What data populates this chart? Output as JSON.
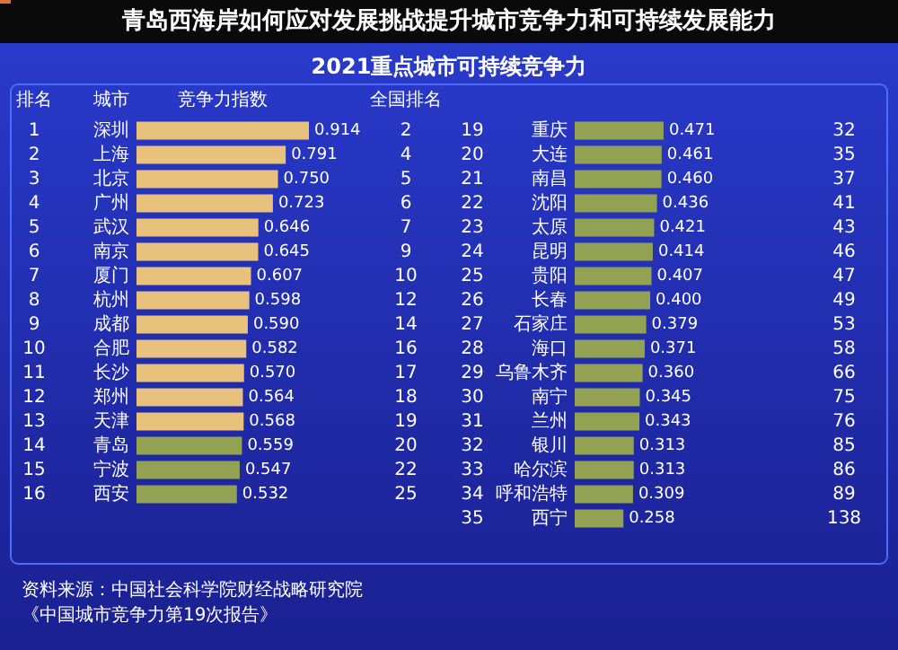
{
  "chart_data": [
    {
      "type": "bar",
      "orientation": "horizontal",
      "title": "2021重点城市可持续竞争力",
      "xlabel": "竞争力指数",
      "ylabel": "城市",
      "categories": [
        "深圳",
        "上海",
        "北京",
        "广州",
        "武汉",
        "南京",
        "厦门",
        "杭州",
        "成都",
        "合肥",
        "长沙",
        "郑州",
        "天津",
        "青岛",
        "宁波",
        "西安",
        null,
        null
      ],
      "values": [
        0.914,
        0.791,
        0.75,
        0.723,
        0.646,
        0.645,
        0.607,
        0.598,
        0.59,
        0.582,
        0.57,
        0.564,
        0.568,
        0.559,
        0.547,
        0.532,
        null,
        null
      ],
      "value_labels": [
        "0.914",
        "0.791",
        "0.750",
        "0.723",
        "0.646",
        "0.645",
        "0.607",
        "0.598",
        "0.590",
        "0.582",
        "0.570",
        "0.564",
        "0.568",
        "0.559",
        "0.547",
        "0.532",
        null,
        null
      ],
      "colors": [
        "#e8c27c",
        "#e8c27c",
        "#e8c27c",
        "#e8c27c",
        "#e8c27c",
        "#e8c27c",
        "#e8c27c",
        "#e8c27c",
        "#e8c27c",
        "#e8c27c",
        "#e8c27c",
        "#e8c27c",
        "#e8c27c",
        "#93a152",
        "#93a152",
        "#93a152",
        null,
        null
      ],
      "annotations": [
        "青岛西海岸如何应对发展挑战提升城市竞争力和可持续发展能力",
        "排名",
        "全国排名",
        "资料来源：中国社会科学院财经战略研究院",
        "《中国城市竞争力第19次报告》",
        "1",
        "2",
        "3",
        "4",
        "5",
        "6",
        "7",
        "8",
        "9",
        "10",
        "11",
        "12",
        "13",
        "14",
        "15",
        "16",
        "2",
        "4",
        "5",
        "6",
        "7",
        "9",
        "10",
        "12",
        "14",
        "16",
        "17",
        "18",
        "19",
        "20",
        "22",
        "25"
      ]
    },
    {
      "type": "bar",
      "orientation": "horizontal",
      "categories": [
        "重庆",
        "大连",
        "南昌",
        "沈阳",
        "太原",
        "昆明",
        "贵阳",
        "长春",
        "石家庄",
        "海口",
        "乌鲁木齐",
        "南宁",
        "兰州",
        "银川",
        "哈尔滨",
        "呼和浩特",
        "西宁"
      ],
      "values": [
        0.471,
        0.461,
        0.46,
        0.436,
        0.421,
        0.414,
        0.407,
        0.4,
        0.379,
        0.371,
        0.36,
        0.345,
        0.343,
        0.313,
        0.313,
        0.309,
        0.258
      ],
      "value_labels": [
        "0.471",
        "0.461",
        "0.460",
        "0.436",
        "0.421",
        "0.414",
        "0.407",
        "0.400",
        "0.379",
        "0.371",
        "0.360",
        "0.345",
        "0.343",
        "0.313",
        "0.313",
        "0.309",
        "0.258"
      ],
      "colors": [
        "#93a152",
        "#93a152",
        "#93a152",
        "#93a152",
        "#93a152",
        "#93a152",
        "#93a152",
        "#93a152",
        "#93a152",
        "#93a152",
        "#93a152",
        "#93a152",
        "#93a152",
        "#93a152",
        "#93a152",
        "#93a152",
        "#93a152"
      ],
      "annotations": [
        "19",
        "20",
        "21",
        "22",
        "23",
        "24",
        "25",
        "26",
        "27",
        "28",
        "29",
        "30",
        "31",
        "32",
        "33",
        "34",
        "35",
        "32",
        "35",
        "37",
        "41",
        "43",
        "46",
        "47",
        "49",
        "53",
        "58",
        "66",
        "75",
        "76",
        "85",
        "86",
        "89",
        "138"
      ]
    }
  ]
}
